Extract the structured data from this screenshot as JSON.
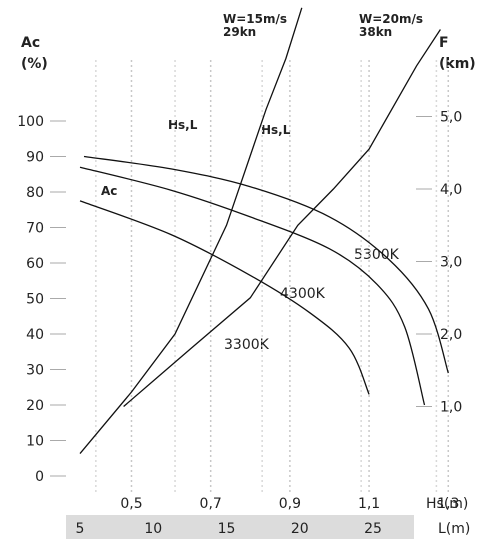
{
  "chart_data": {
    "type": "line",
    "left_axis": {
      "title_line1": "Ac",
      "title_line2": "(%)",
      "ticks": [
        0,
        10,
        20,
        30,
        40,
        50,
        60,
        70,
        80,
        90,
        100
      ],
      "range": [
        0,
        100
      ]
    },
    "right_axis": {
      "title_line1": "F",
      "title_line2": "(km)",
      "ticks": [
        "1,0",
        "2,0",
        "3,0",
        "4,0",
        "5,0"
      ],
      "values": [
        1.0,
        2.0,
        3.0,
        4.0,
        5.0
      ]
    },
    "hs_axis": {
      "unit_label": "Hs(m)",
      "ticks": [
        "0,5",
        "0,7",
        "0,9",
        "1,1",
        "1,3"
      ],
      "values": [
        0.5,
        0.7,
        0.9,
        1.1,
        1.3
      ],
      "range": [
        0.35,
        1.32
      ]
    },
    "l_axis": {
      "unit_label": "L(m)",
      "ticks": [
        "5",
        "10",
        "15",
        "20",
        "25"
      ],
      "values": [
        5,
        10,
        15,
        20,
        25
      ]
    },
    "wind_labels": [
      {
        "line1": "W=15m/s",
        "line2": "29kn"
      },
      {
        "line1": "W=20m/s",
        "line2": "38kn"
      }
    ],
    "series": [
      {
        "name": "5300K",
        "axis": "Ac",
        "points": [
          [
            0.38,
            90
          ],
          [
            0.6,
            86.5
          ],
          [
            0.8,
            81.5
          ],
          [
            1.0,
            73
          ],
          [
            1.15,
            61
          ],
          [
            1.25,
            47
          ],
          [
            1.3,
            29
          ]
        ]
      },
      {
        "name": "4300K",
        "axis": "Ac",
        "points": [
          [
            0.37,
            87
          ],
          [
            0.6,
            80.5
          ],
          [
            0.8,
            73
          ],
          [
            1.0,
            64
          ],
          [
            1.12,
            54
          ],
          [
            1.19,
            42
          ],
          [
            1.24,
            20
          ]
        ]
      },
      {
        "name": "3300K",
        "axis": "Ac",
        "points": [
          [
            0.37,
            77.5
          ],
          [
            0.6,
            68
          ],
          [
            0.8,
            56.5
          ],
          [
            0.95,
            46
          ],
          [
            1.05,
            36
          ],
          [
            1.1,
            23
          ]
        ]
      },
      {
        "name": "Hs,L",
        "axis": "F",
        "points": [
          [
            0.37,
            0.35
          ],
          [
            0.5,
            1.2
          ],
          [
            0.61,
            2.0
          ],
          [
            0.74,
            3.5
          ],
          [
            0.84,
            5.1
          ],
          [
            0.89,
            5.8
          ],
          [
            0.93,
            6.5
          ]
        ]
      },
      {
        "name": "Hs,L",
        "axis": "F",
        "points": [
          [
            0.48,
            1.0
          ],
          [
            0.65,
            1.8
          ],
          [
            0.8,
            2.5
          ],
          [
            0.92,
            3.5
          ],
          [
            1.01,
            4.0
          ],
          [
            1.1,
            4.55
          ],
          [
            1.22,
            5.7
          ],
          [
            1.28,
            6.2
          ]
        ]
      }
    ],
    "series_labels": [
      "Ac",
      "Hs,L",
      "Hs,L",
      "5300K",
      "4300K",
      "3300K"
    ],
    "grid": "dotted verticals at Hs ticks"
  }
}
